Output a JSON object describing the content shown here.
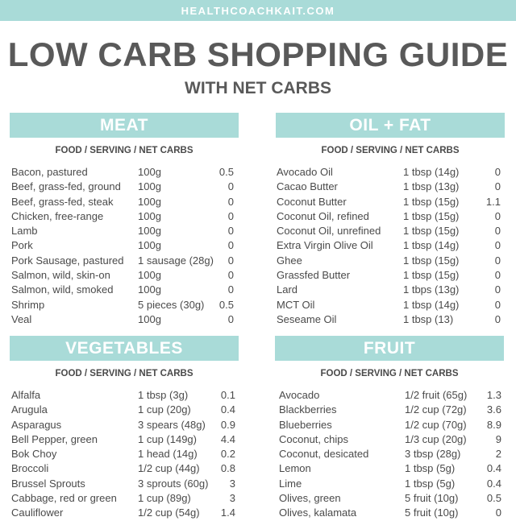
{
  "header": {
    "site": "HEALTHCOACHKAIT.COM",
    "title": "LOW CARB SHOPPING GUIDE",
    "subtitle": "WITH NET CARBS"
  },
  "sections": {
    "meat": {
      "title": "MEAT",
      "column_header": "FOOD / SERVING / NET CARBS",
      "rows": [
        {
          "food": "Bacon, pastured",
          "serving": "100g",
          "carbs": "0.5"
        },
        {
          "food": "Beef, grass-fed, ground",
          "serving": "100g",
          "carbs": "0"
        },
        {
          "food": "Beef, grass-fed, steak",
          "serving": "100g",
          "carbs": "0"
        },
        {
          "food": "Chicken, free-range",
          "serving": "100g",
          "carbs": "0"
        },
        {
          "food": "Lamb",
          "serving": "100g",
          "carbs": "0"
        },
        {
          "food": "Pork",
          "serving": "100g",
          "carbs": "0"
        },
        {
          "food": "Pork Sausage, pastured",
          "serving": "1 sausage (28g)",
          "carbs": "0"
        },
        {
          "food": "Salmon, wild, skin-on",
          "serving": "100g",
          "carbs": "0"
        },
        {
          "food": "Salmon, wild, smoked",
          "serving": "100g",
          "carbs": "0"
        },
        {
          "food": "Shrimp",
          "serving": "5 pieces (30g)",
          "carbs": "0.5"
        },
        {
          "food": "Veal",
          "serving": "100g",
          "carbs": "0"
        }
      ]
    },
    "oil_fat": {
      "title": "OIL + FAT",
      "column_header": "FOOD / SERVING / NET CARBS",
      "rows": [
        {
          "food": "Avocado Oil",
          "serving": "1 tbsp (14g)",
          "carbs": "0"
        },
        {
          "food": "Cacao Butter",
          "serving": "1 tbsp (13g)",
          "carbs": "0"
        },
        {
          "food": "Coconut Butter",
          "serving": "1 tbsp (15g)",
          "carbs": "1.1"
        },
        {
          "food": "Coconut Oil, refined",
          "serving": "1 tbsp (15g)",
          "carbs": "0"
        },
        {
          "food": "Coconut Oil, unrefined",
          "serving": "1 tbsp (15g)",
          "carbs": "0"
        },
        {
          "food": "Extra Virgin Olive Oil",
          "serving": "1 tbsp (14g)",
          "carbs": "0"
        },
        {
          "food": "Ghee",
          "serving": "1 tbsp (15g)",
          "carbs": "0"
        },
        {
          "food": "Grassfed Butter",
          "serving": "1 tbsp (15g)",
          "carbs": "0"
        },
        {
          "food": "Lard",
          "serving": "1 tbps (13g)",
          "carbs": "0"
        },
        {
          "food": "MCT Oil",
          "serving": "1 tbsp (14g)",
          "carbs": "0"
        },
        {
          "food": "Seseame Oil",
          "serving": "1 tbsp (13)",
          "carbs": "0"
        }
      ]
    },
    "vegetables": {
      "title": "VEGETABLES",
      "column_header": "FOOD / SERVING / NET CARBS",
      "rows": [
        {
          "food": "Alfalfa",
          "serving": "1 tbsp (3g)",
          "carbs": "0.1"
        },
        {
          "food": "Arugula",
          "serving": "1 cup (20g)",
          "carbs": "0.4"
        },
        {
          "food": "Asparagus",
          "serving": "3 spears (48g)",
          "carbs": "0.9"
        },
        {
          "food": "Bell Pepper, green",
          "serving": "1 cup (149g)",
          "carbs": "4.4"
        },
        {
          "food": "Bok Choy",
          "serving": "1 head (14g)",
          "carbs": "0.2"
        },
        {
          "food": "Broccoli",
          "serving": "1/2 cup (44g)",
          "carbs": "0.8"
        },
        {
          "food": "Brussel Sprouts",
          "serving": "3 sprouts (60g)",
          "carbs": "3"
        },
        {
          "food": "Cabbage, red or green",
          "serving": "1 cup (89g)",
          "carbs": "3"
        },
        {
          "food": "Cauliflower",
          "serving": "1/2 cup (54g)",
          "carbs": "1.4"
        }
      ]
    },
    "fruit": {
      "title": "FRUIT",
      "column_header": "FOOD / SERVING / NET CARBS",
      "rows": [
        {
          "food": "Avocado",
          "serving": "1/2 fruit (65g)",
          "carbs": "1.3"
        },
        {
          "food": "Blackberries",
          "serving": "1/2 cup (72g)",
          "carbs": "3.6"
        },
        {
          "food": "Blueberries",
          "serving": "1/2 cup (70g)",
          "carbs": "8.9"
        },
        {
          "food": "Coconut, chips",
          "serving": "1/3 cup (20g)",
          "carbs": "9"
        },
        {
          "food": "Coconut, desicated",
          "serving": "3 tbsp (28g)",
          "carbs": "2"
        },
        {
          "food": "Lemon",
          "serving": "1 tbsp (5g)",
          "carbs": "0.4"
        },
        {
          "food": "Lime",
          "serving": "1 tbsp (5g)",
          "carbs": "0.4"
        },
        {
          "food": "Olives, green",
          "serving": "5 fruit (10g)",
          "carbs": "0.5"
        },
        {
          "food": "Olives, kalamata",
          "serving": "5 fruit (10g)",
          "carbs": "0"
        }
      ]
    }
  },
  "colors": {
    "accent": "#a9dbd8",
    "text": "#4a4a4a",
    "title": "#595959"
  }
}
